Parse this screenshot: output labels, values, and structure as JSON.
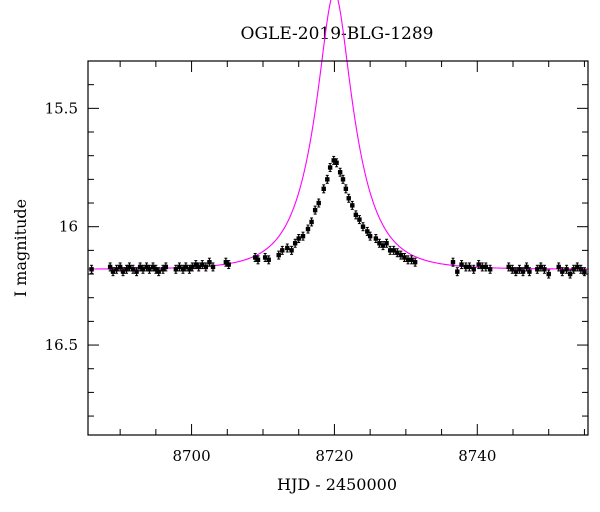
{
  "chart_data": {
    "type": "scatter",
    "title": "OGLE-2019-BLG-1289",
    "xlabel": "HJD - 2450000",
    "ylabel": "I magnitude",
    "xlim": [
      8685.5,
      8755.5
    ],
    "ylim": [
      15.3,
      16.88
    ],
    "y_inverted": true,
    "x_ticks": [
      8700,
      8720,
      8740
    ],
    "y_ticks": [
      15.5,
      16,
      16.5
    ],
    "x_tick_labels": [
      "8700",
      "8720",
      "8740"
    ],
    "y_tick_labels": [
      "15.5",
      "16",
      "16.5"
    ],
    "grid": false,
    "colors": {
      "points": "#000000",
      "model": "#ff00ff"
    },
    "model": {
      "t0": 8720.0,
      "u0": 0.3565,
      "tE": 5.4,
      "baseline_mag": 16.18
    },
    "series": [
      {
        "values": [
          [
            8686.0,
            16.18
          ],
          [
            8688.6,
            16.17
          ],
          [
            8689.0,
            16.19
          ],
          [
            8689.5,
            16.18
          ],
          [
            8690.0,
            16.17
          ],
          [
            8690.4,
            16.19
          ],
          [
            8690.9,
            16.18
          ],
          [
            8691.3,
            16.17
          ],
          [
            8691.8,
            16.18
          ],
          [
            8692.3,
            16.19
          ],
          [
            8692.8,
            16.17
          ],
          [
            8693.2,
            16.18
          ],
          [
            8693.7,
            16.17
          ],
          [
            8694.1,
            16.18
          ],
          [
            8694.6,
            16.17
          ],
          [
            8695.0,
            16.18
          ],
          [
            8695.4,
            16.19
          ],
          [
            8696.0,
            16.18
          ],
          [
            8696.4,
            16.17
          ],
          [
            8697.8,
            16.18
          ],
          [
            8698.3,
            16.17
          ],
          [
            8698.8,
            16.18
          ],
          [
            8699.2,
            16.17
          ],
          [
            8699.7,
            16.18
          ],
          [
            8700.1,
            16.17
          ],
          [
            8700.6,
            16.16
          ],
          [
            8701.0,
            16.17
          ],
          [
            8701.5,
            16.16
          ],
          [
            8702.0,
            16.17
          ],
          [
            8702.5,
            16.15
          ],
          [
            8703.0,
            16.17
          ],
          [
            8704.8,
            16.15
          ],
          [
            8705.2,
            16.16
          ],
          [
            8708.9,
            16.13
          ],
          [
            8709.3,
            16.14
          ],
          [
            8710.3,
            16.13
          ],
          [
            8710.8,
            16.14
          ],
          [
            8712.2,
            16.12
          ],
          [
            8712.7,
            16.1
          ],
          [
            8713.4,
            16.09
          ],
          [
            8714.0,
            16.1
          ],
          [
            8714.5,
            16.07
          ],
          [
            8715.0,
            16.05
          ],
          [
            8715.6,
            16.04
          ],
          [
            8716.3,
            16.01
          ],
          [
            8716.8,
            15.98
          ],
          [
            8717.3,
            15.93
          ],
          [
            8717.8,
            15.9
          ],
          [
            8718.5,
            15.84
          ],
          [
            8719.0,
            15.8
          ],
          [
            8719.4,
            15.75
          ],
          [
            8719.9,
            15.72
          ],
          [
            8720.3,
            15.73
          ],
          [
            8720.8,
            15.77
          ],
          [
            8721.2,
            15.8
          ],
          [
            8721.6,
            15.84
          ],
          [
            8722.0,
            15.88
          ],
          [
            8722.5,
            15.91
          ],
          [
            8723.0,
            15.95
          ],
          [
            8723.5,
            15.97
          ],
          [
            8724.0,
            16.0
          ],
          [
            8724.6,
            16.02
          ],
          [
            8725.0,
            16.04
          ],
          [
            8725.8,
            16.05
          ],
          [
            8726.3,
            16.07
          ],
          [
            8726.8,
            16.08
          ],
          [
            8727.3,
            16.07
          ],
          [
            8727.8,
            16.1
          ],
          [
            8728.3,
            16.1
          ],
          [
            8728.8,
            16.11
          ],
          [
            8729.3,
            16.12
          ],
          [
            8729.8,
            16.13
          ],
          [
            8730.3,
            16.14
          ],
          [
            8730.8,
            16.14
          ],
          [
            8731.3,
            16.15
          ],
          [
            8736.6,
            16.15
          ],
          [
            8737.2,
            16.19
          ],
          [
            8737.8,
            16.16
          ],
          [
            8738.4,
            16.17
          ],
          [
            8738.9,
            16.17
          ],
          [
            8739.5,
            16.18
          ],
          [
            8740.2,
            16.16
          ],
          [
            8740.7,
            16.17
          ],
          [
            8741.2,
            16.17
          ],
          [
            8741.8,
            16.18
          ],
          [
            8744.4,
            16.17
          ],
          [
            8744.9,
            16.18
          ],
          [
            8745.4,
            16.19
          ],
          [
            8745.9,
            16.18
          ],
          [
            8746.4,
            16.19
          ],
          [
            8746.9,
            16.17
          ],
          [
            8747.3,
            16.19
          ],
          [
            8748.4,
            16.18
          ],
          [
            8748.9,
            16.17
          ],
          [
            8749.4,
            16.18
          ],
          [
            8750.0,
            16.2
          ],
          [
            8751.4,
            16.17
          ],
          [
            8751.9,
            16.19
          ],
          [
            8752.5,
            16.18
          ],
          [
            8753.0,
            16.2
          ],
          [
            8753.5,
            16.18
          ],
          [
            8754.0,
            16.17
          ],
          [
            8754.5,
            16.18
          ],
          [
            8755.0,
            16.19
          ]
        ]
      }
    ]
  }
}
